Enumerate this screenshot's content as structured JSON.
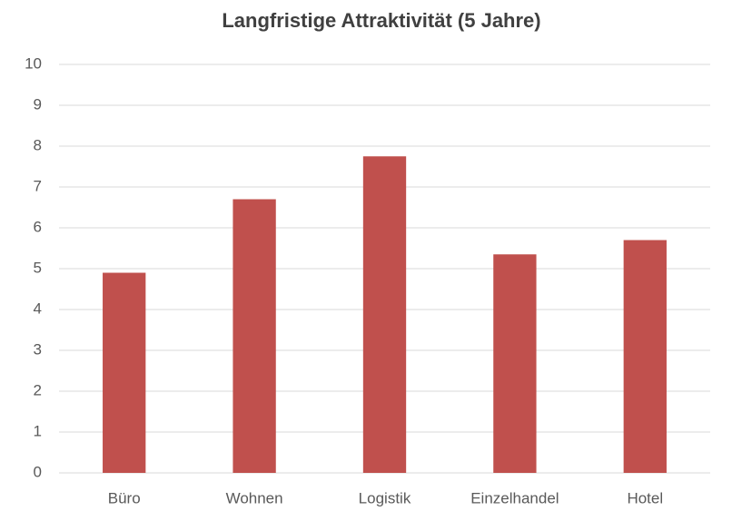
{
  "chart_data": {
    "type": "bar",
    "title": "Langfristige Attraktivität (5 Jahre)",
    "categories": [
      "Büro",
      "Wohnen",
      "Logistik",
      "Einzelhandel",
      "Hotel"
    ],
    "values": [
      4.9,
      6.7,
      7.75,
      5.35,
      5.7
    ],
    "color": "#c0504d",
    "ylim": [
      0,
      10
    ],
    "yticks": [
      0,
      1,
      2,
      3,
      4,
      5,
      6,
      7,
      8,
      9,
      10
    ],
    "grid": true
  }
}
